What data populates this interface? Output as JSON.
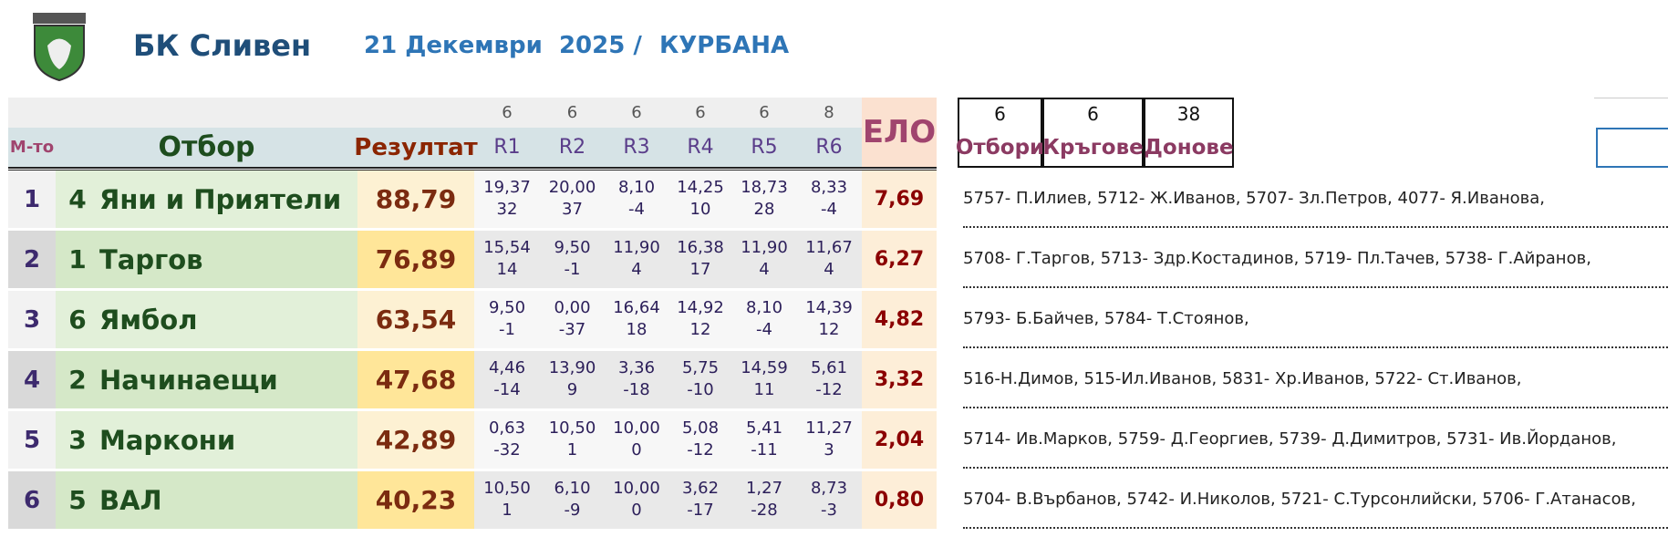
{
  "header": {
    "title": "БК Сливен",
    "date": "21 Декември  2025 /",
    "location": "КУРБАНА"
  },
  "summary": {
    "counts": [
      "6",
      "6",
      "38"
    ],
    "labels": [
      "Отбори",
      "Кръгове",
      "Донове"
    ]
  },
  "table": {
    "columns": [
      "М-то",
      "Отбор",
      "Резултат",
      "R1",
      "R2",
      "R3",
      "R4",
      "R5",
      "R6",
      "ЕЛО"
    ],
    "round_counts": [
      "6",
      "6",
      "6",
      "6",
      "6",
      "8"
    ],
    "rows": [
      {
        "place": "1",
        "num": "4",
        "team": "Яни и Приятели",
        "result": "88,79",
        "rounds": [
          [
            "19,37",
            "32"
          ],
          [
            "20,00",
            "37"
          ],
          [
            "8,10",
            "-4"
          ],
          [
            "14,25",
            "10"
          ],
          [
            "18,73",
            "28"
          ],
          [
            "8,33",
            "-4"
          ]
        ],
        "elo": "7,69",
        "players": "5757- П.Илиев, 5712- Ж.Иванов, 5707- Зл.Петров, 4077- Я.Иванова,"
      },
      {
        "place": "2",
        "num": "1",
        "team": "Таргов",
        "result": "76,89",
        "rounds": [
          [
            "15,54",
            "14"
          ],
          [
            "9,50",
            "-1"
          ],
          [
            "11,90",
            "4"
          ],
          [
            "16,38",
            "17"
          ],
          [
            "11,90",
            "4"
          ],
          [
            "11,67",
            "4"
          ]
        ],
        "elo": "6,27",
        "players": "5708- Г.Таргов, 5713- Здр.Костадинов, 5719- Пл.Тачев, 5738- Г.Айранов,"
      },
      {
        "place": "3",
        "num": "6",
        "team": "Ямбол",
        "result": "63,54",
        "rounds": [
          [
            "9,50",
            "-1"
          ],
          [
            "0,00",
            "-37"
          ],
          [
            "16,64",
            "18"
          ],
          [
            "14,92",
            "12"
          ],
          [
            "8,10",
            "-4"
          ],
          [
            "14,39",
            "12"
          ]
        ],
        "elo": "4,82",
        "players": "5793- Б.Байчев, 5784- Т.Стоянов,"
      },
      {
        "place": "4",
        "num": "2",
        "team": "Начинаещи",
        "result": "47,68",
        "rounds": [
          [
            "4,46",
            "-14"
          ],
          [
            "13,90",
            "9"
          ],
          [
            "3,36",
            "-18"
          ],
          [
            "5,75",
            "-10"
          ],
          [
            "14,59",
            "11"
          ],
          [
            "5,61",
            "-12"
          ]
        ],
        "elo": "3,32",
        "players": "516-Н.Димов, 515-Ил.Иванов, 5831- Хр.Иванов, 5722- Ст.Иванов,"
      },
      {
        "place": "5",
        "num": "3",
        "team": "Маркони",
        "result": "42,89",
        "rounds": [
          [
            "0,63",
            "-32"
          ],
          [
            "10,50",
            "1"
          ],
          [
            "10,00",
            "0"
          ],
          [
            "5,08",
            "-12"
          ],
          [
            "5,41",
            "-11"
          ],
          [
            "11,27",
            "3"
          ]
        ],
        "elo": "2,04",
        "players": "5714- Ив.Марков, 5759- Д.Георгиев, 5739- Д.Димитров, 5731- Ив.Йорданов,"
      },
      {
        "place": "6",
        "num": "5",
        "team": "ВАЛ",
        "result": "40,23",
        "rounds": [
          [
            "10,50",
            "1"
          ],
          [
            "6,10",
            "-9"
          ],
          [
            "10,00",
            "0"
          ],
          [
            "3,62",
            "-17"
          ],
          [
            "1,27",
            "-28"
          ],
          [
            "8,73",
            "-3"
          ]
        ],
        "elo": "0,80",
        "players": "5704- В.Върбанов, 5742- И.Николов, 5721- С.Турсонлийски, 5706- Г.Атанасов,"
      }
    ]
  }
}
